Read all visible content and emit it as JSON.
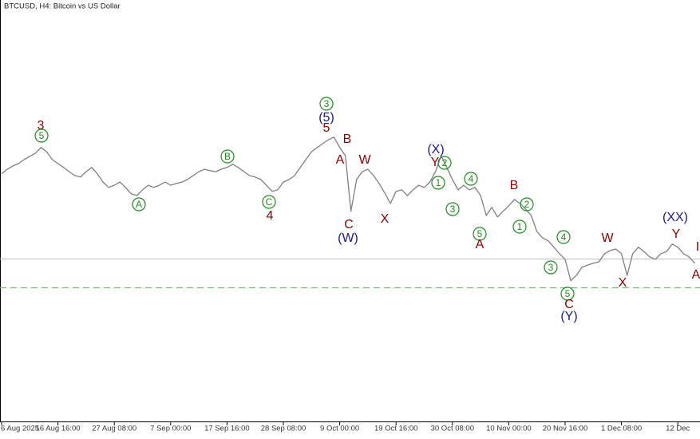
{
  "chart_data": {
    "type": "line",
    "title": "BTCUSD, H4:  Bitcoin vs US Dollar",
    "categories": [
      "6 Aug 2025",
      null,
      null,
      null,
      null,
      null,
      null,
      null,
      null,
      null,
      "16 Aug 16:00",
      null,
      null,
      null,
      null,
      null,
      null,
      null,
      null,
      null,
      "27 Aug 08:00",
      null,
      null,
      null,
      null,
      null,
      null,
      null,
      null,
      null,
      "7 Sep 00:00",
      null,
      null,
      null,
      null,
      null,
      null,
      null,
      null,
      null,
      "17 Sep 16:00",
      null,
      null,
      null,
      null,
      null,
      null,
      null,
      null,
      null,
      "28 Sep 08:00",
      null,
      null,
      null,
      null,
      null,
      null,
      null,
      null,
      null,
      "9 Oct 00:00",
      null,
      null,
      null,
      null,
      null,
      null,
      null,
      null,
      null,
      "19 Oct 16:00",
      null,
      null,
      null,
      null,
      null,
      null,
      null,
      null,
      null,
      "30 Oct 08:00",
      null,
      null,
      null,
      null,
      null,
      null,
      null,
      null,
      null,
      "10 Nov 00:00",
      null,
      null,
      null,
      null,
      null,
      null,
      null,
      null,
      null,
      "20 Nov 16:00",
      null,
      null,
      null,
      null,
      null,
      null,
      null,
      null,
      null,
      "1 Dec 08:00",
      null,
      null,
      null,
      null,
      null,
      null,
      null,
      null,
      null,
      "12 Dec",
      null,
      null,
      null
    ],
    "series": [
      {
        "color": "#7f7f7f",
        "values": [
          115700,
          117000,
          117900,
          118600,
          119700,
          120600,
          121500,
          123100,
          121900,
          119700,
          118600,
          117500,
          116300,
          115200,
          114800,
          116300,
          117500,
          115700,
          113400,
          111900,
          112500,
          113400,
          111900,
          110100,
          109600,
          111200,
          112500,
          111900,
          112500,
          113400,
          112500,
          113000,
          113400,
          114100,
          115200,
          116300,
          117000,
          116600,
          116300,
          117000,
          117500,
          118400,
          117500,
          116300,
          115200,
          114800,
          114100,
          112500,
          110800,
          111200,
          113400,
          114100,
          115200,
          117500,
          119700,
          121900,
          123100,
          124200,
          125300,
          126000,
          123100,
          120800,
          105200,
          114100,
          116300,
          117000,
          115200,
          113000,
          110300,
          107400,
          110800,
          111200,
          109600,
          111200,
          112500,
          111900,
          113400,
          116300,
          120800,
          117500,
          114100,
          111200,
          112500,
          111200,
          111900,
          109600,
          104000,
          106300,
          103600,
          105200,
          106700,
          108500,
          107400,
          105800,
          104000,
          99500,
          97700,
          96900,
          95100,
          93300,
          91700,
          85700,
          87200,
          89500,
          90100,
          90600,
          91000,
          93300,
          94200,
          94600,
          93300,
          87200,
          93300,
          95100,
          93900,
          92400,
          91700,
          93300,
          93900,
          96000,
          95100,
          93300,
          92400,
          90600
        ]
      }
    ],
    "ylim": [
      46200,
      164500
    ],
    "reference_lines": [
      {
        "value": 91900,
        "color": "#c0c0c0",
        "style": "solid"
      },
      {
        "value": 83900,
        "color": "#6fbf6f",
        "style": "dashed"
      }
    ],
    "annotations": [
      {
        "text": "3",
        "color": "#8b0000",
        "circled": false
      },
      {
        "text": "5",
        "color": "#1e8c1e",
        "circled": true
      },
      {
        "text": "A",
        "color": "#1e8c1e",
        "circled": true
      },
      {
        "text": "B",
        "color": "#1e8c1e",
        "circled": true
      },
      {
        "text": "C",
        "color": "#1e8c1e",
        "circled": true
      },
      {
        "text": "4",
        "color": "#8b0000",
        "circled": false
      },
      {
        "text": "3",
        "color": "#1e8c1e",
        "circled": true
      },
      {
        "text": "(5)",
        "color": "#1a1a80",
        "circled": false
      },
      {
        "text": "5",
        "color": "#8b0000",
        "circled": false
      },
      {
        "text": "B",
        "color": "#8b0000",
        "circled": false
      },
      {
        "text": "A",
        "color": "#8b0000",
        "circled": false
      },
      {
        "text": "W",
        "color": "#8b0000",
        "circled": false
      },
      {
        "text": "C",
        "color": "#8b0000",
        "circled": false
      },
      {
        "text": "(W)",
        "color": "#1a1a80",
        "circled": false
      },
      {
        "text": "X",
        "color": "#8b0000",
        "circled": false
      },
      {
        "text": "(X)",
        "color": "#1a1a80",
        "circled": false
      },
      {
        "text": "Y",
        "color": "#8b0000",
        "circled": false
      },
      {
        "text": "2",
        "color": "#1e8c1e",
        "circled": true
      },
      {
        "text": "1",
        "color": "#1e8c1e",
        "circled": true
      },
      {
        "text": "4",
        "color": "#1e8c1e",
        "circled": true
      },
      {
        "text": "3",
        "color": "#1e8c1e",
        "circled": true
      },
      {
        "text": "5",
        "color": "#1e8c1e",
        "circled": true
      },
      {
        "text": "A",
        "color": "#8b0000",
        "circled": false
      },
      {
        "text": "B",
        "color": "#8b0000",
        "circled": false
      },
      {
        "text": "2",
        "color": "#1e8c1e",
        "circled": true
      },
      {
        "text": "1",
        "color": "#1e8c1e",
        "circled": true
      },
      {
        "text": "4",
        "color": "#1e8c1e",
        "circled": true
      },
      {
        "text": "3",
        "color": "#1e8c1e",
        "circled": true
      },
      {
        "text": "5",
        "color": "#1e8c1e",
        "circled": true
      },
      {
        "text": "C",
        "color": "#8b0000",
        "circled": false
      },
      {
        "text": "(Y)",
        "color": "#1a1a80",
        "circled": false
      },
      {
        "text": "W",
        "color": "#8b0000",
        "circled": false
      },
      {
        "text": "X",
        "color": "#8b0000",
        "circled": false
      },
      {
        "text": "(XX)",
        "color": "#1a1a80",
        "circled": false
      },
      {
        "text": "Y",
        "color": "#8b0000",
        "circled": false
      },
      {
        "text": "I",
        "color": "#8b0000",
        "circled": false
      },
      {
        "text": "A",
        "color": "#8b0000",
        "circled": false
      }
    ]
  }
}
